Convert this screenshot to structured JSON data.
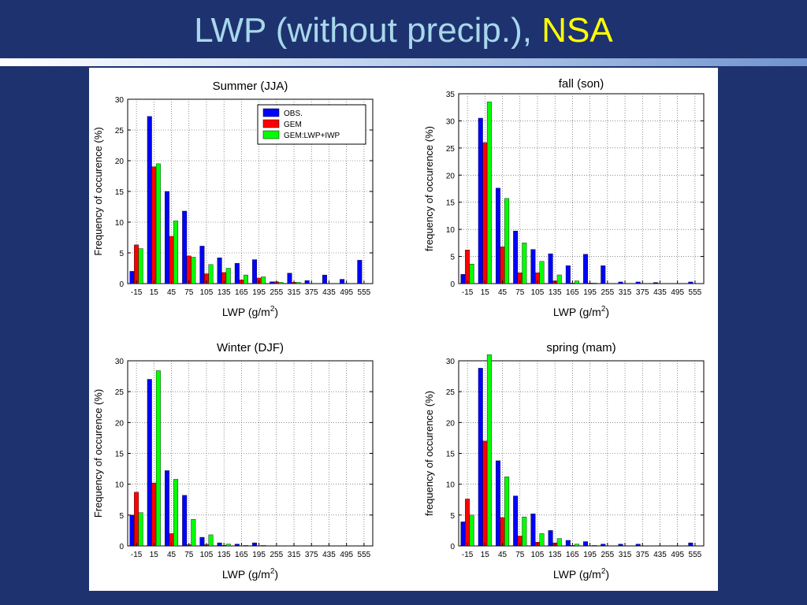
{
  "slide": {
    "title_main": "LWP (without precip.),",
    "title_accent": "NSA"
  },
  "colors": {
    "obs": "#0000ff",
    "gem": "#ff0000",
    "gem_lwp_iwp": "#00ff00"
  },
  "chart_data": [
    {
      "type": "bar",
      "title": "Summer (JJA)",
      "ylabel": "Frequency of occurence (%)",
      "xlabel": "LWP (g/m",
      "xlabel_sup": "2",
      "xlabel_end": ")",
      "categories": [
        "-15",
        "15",
        "45",
        "75",
        "105",
        "135",
        "165",
        "195",
        "255",
        "315",
        "375",
        "435",
        "495",
        "555"
      ],
      "ylim": [
        0,
        30
      ],
      "yticks": [
        0,
        5,
        10,
        15,
        20,
        25,
        30
      ],
      "grid": true,
      "legend": "top-right",
      "series": [
        {
          "name": "OBS.",
          "values": [
            2,
            27.2,
            15,
            11.8,
            6.1,
            4.2,
            3.3,
            3.9,
            0.3,
            1.7,
            0.5,
            1.4,
            0.7,
            3.8
          ]
        },
        {
          "name": "GEM",
          "values": [
            6.3,
            19,
            7.7,
            4.5,
            1.6,
            1.8,
            0.6,
            0.9,
            0.3,
            0.2,
            0,
            0,
            0,
            0
          ]
        },
        {
          "name": "GEM:LWP+IWP",
          "values": [
            5.7,
            19.5,
            10.2,
            4.3,
            3.1,
            2.5,
            1.4,
            1.1,
            0.2,
            0.2,
            0,
            0,
            0,
            0
          ]
        }
      ]
    },
    {
      "type": "bar",
      "title": "fall (son)",
      "ylabel": "frequency of occurence (%)",
      "xlabel": "LWP (g/m",
      "xlabel_sup": "2",
      "xlabel_end": ")",
      "categories": [
        "-15",
        "15",
        "45",
        "75",
        "105",
        "135",
        "165",
        "195",
        "255",
        "315",
        "375",
        "435",
        "495",
        "555"
      ],
      "ylim": [
        0,
        35
      ],
      "yticks": [
        0,
        5,
        10,
        15,
        20,
        25,
        30,
        35
      ],
      "grid": true,
      "series": [
        {
          "name": "OBS.",
          "values": [
            1.7,
            30.5,
            17.6,
            9.7,
            6.3,
            5.5,
            3.3,
            5.4,
            3.3,
            0.3,
            0.3,
            0.2,
            0,
            0.3
          ]
        },
        {
          "name": "GEM",
          "values": [
            6.2,
            26,
            6.8,
            2,
            2,
            0.5,
            0.1,
            0.1,
            0,
            0,
            0,
            0,
            0,
            0
          ]
        },
        {
          "name": "GEM:LWP+IWP",
          "values": [
            3.6,
            33.5,
            15.7,
            7.5,
            4.1,
            1.6,
            0.5,
            0.1,
            0,
            0,
            0,
            0,
            0,
            0
          ]
        }
      ]
    },
    {
      "type": "bar",
      "title": "Winter (DJF)",
      "ylabel": "Frequency of occurence (%)",
      "xlabel": "LWP (g/m",
      "xlabel_sup": "2",
      "xlabel_end": ")",
      "categories": [
        "-15",
        "15",
        "45",
        "75",
        "105",
        "135",
        "165",
        "195",
        "255",
        "315",
        "375",
        "435",
        "495",
        "555"
      ],
      "ylim": [
        0,
        30
      ],
      "yticks": [
        0,
        5,
        10,
        15,
        20,
        25,
        30
      ],
      "grid": true,
      "series": [
        {
          "name": "OBS.",
          "values": [
            5,
            27,
            12.2,
            8.2,
            1.4,
            0.5,
            0.3,
            0.5,
            0,
            0,
            0,
            0,
            0,
            0
          ]
        },
        {
          "name": "GEM",
          "values": [
            8.7,
            10.2,
            2,
            0.2,
            0.2,
            0.1,
            0,
            0,
            0,
            0,
            0,
            0,
            0,
            0
          ]
        },
        {
          "name": "GEM:LWP+IWP",
          "values": [
            5.4,
            28.4,
            10.8,
            4.3,
            1.8,
            0.3,
            0.1,
            0.1,
            0,
            0,
            0,
            0,
            0,
            0
          ]
        }
      ]
    },
    {
      "type": "bar",
      "title": "spring (mam)",
      "ylabel": "frequency of occurence (%)",
      "xlabel": "LWP (g/m",
      "xlabel_sup": "2",
      "xlabel_end": ")",
      "categories": [
        "-15",
        "15",
        "45",
        "75",
        "105",
        "135",
        "165",
        "195",
        "255",
        "315",
        "375",
        "435",
        "495",
        "555"
      ],
      "ylim": [
        0,
        30
      ],
      "yticks": [
        0,
        5,
        10,
        15,
        20,
        25,
        30
      ],
      "grid": true,
      "series": [
        {
          "name": "OBS.",
          "values": [
            3.9,
            28.8,
            13.8,
            8.1,
            5.2,
            2.5,
            0.9,
            0.7,
            0.3,
            0.3,
            0.3,
            0,
            0,
            0.5
          ]
        },
        {
          "name": "GEM",
          "values": [
            7.6,
            17,
            4.6,
            1.6,
            0.6,
            0.5,
            0.1,
            0,
            0,
            0,
            0,
            0,
            0,
            0
          ]
        },
        {
          "name": "GEM:LWP+IWP",
          "values": [
            5,
            31,
            11.2,
            4.7,
            2,
            1.2,
            0.3,
            0.1,
            0,
            0,
            0,
            0,
            0,
            0
          ]
        }
      ]
    }
  ]
}
